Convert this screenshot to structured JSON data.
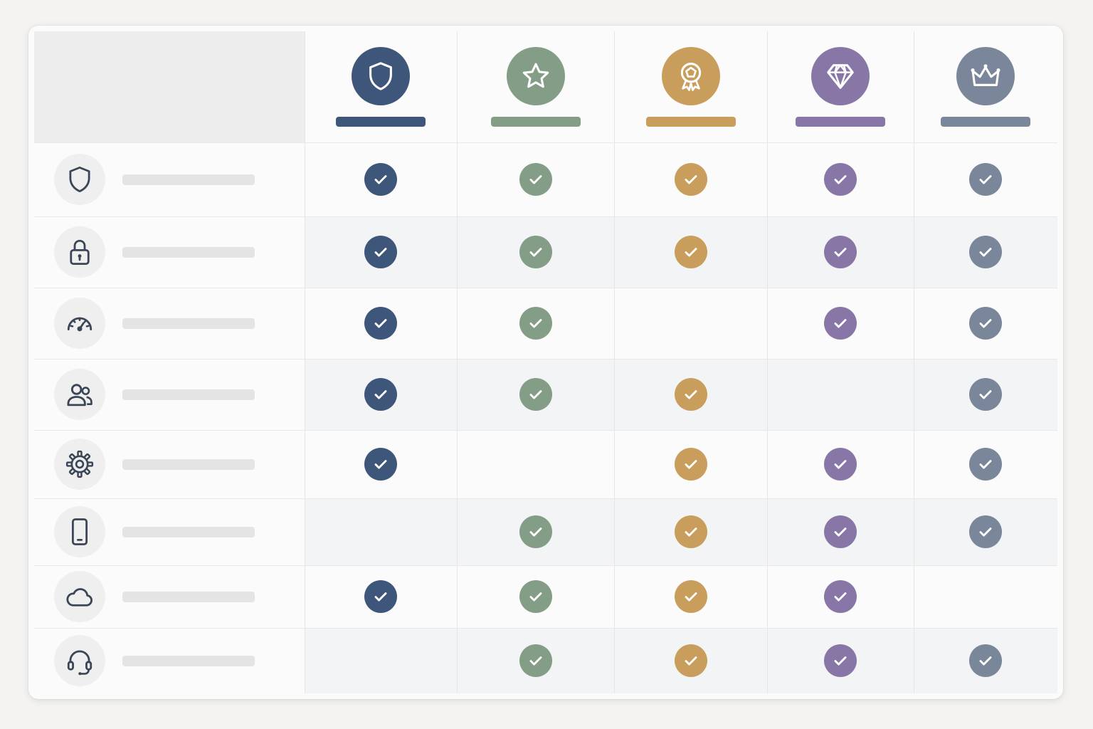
{
  "plans": [
    {
      "id": "shield",
      "icon": "shield-icon",
      "color": "#3e5679"
    },
    {
      "id": "star",
      "icon": "star-icon",
      "color": "#849d86"
    },
    {
      "id": "award",
      "icon": "award-ribbon-icon",
      "color": "#c99d5b"
    },
    {
      "id": "diamond",
      "icon": "diamond-icon",
      "color": "#8877a6"
    },
    {
      "id": "crown",
      "icon": "crown-icon",
      "color": "#7a8699"
    }
  ],
  "features": [
    {
      "id": "security",
      "icon": "shield-icon",
      "included": [
        true,
        true,
        true,
        true,
        true
      ]
    },
    {
      "id": "privacy",
      "icon": "lock-icon",
      "included": [
        true,
        true,
        true,
        true,
        true
      ]
    },
    {
      "id": "performance",
      "icon": "speedometer-icon",
      "included": [
        true,
        true,
        false,
        true,
        true
      ]
    },
    {
      "id": "team",
      "icon": "users-icon",
      "included": [
        true,
        true,
        true,
        false,
        true
      ]
    },
    {
      "id": "settings",
      "icon": "gear-icon",
      "included": [
        true,
        false,
        true,
        true,
        true
      ]
    },
    {
      "id": "mobile",
      "icon": "smartphone-icon",
      "included": [
        false,
        true,
        true,
        true,
        true
      ]
    },
    {
      "id": "cloud",
      "icon": "cloud-icon",
      "included": [
        true,
        true,
        true,
        true,
        false
      ]
    },
    {
      "id": "support",
      "icon": "headset-icon",
      "included": [
        false,
        true,
        true,
        true,
        true
      ]
    }
  ]
}
